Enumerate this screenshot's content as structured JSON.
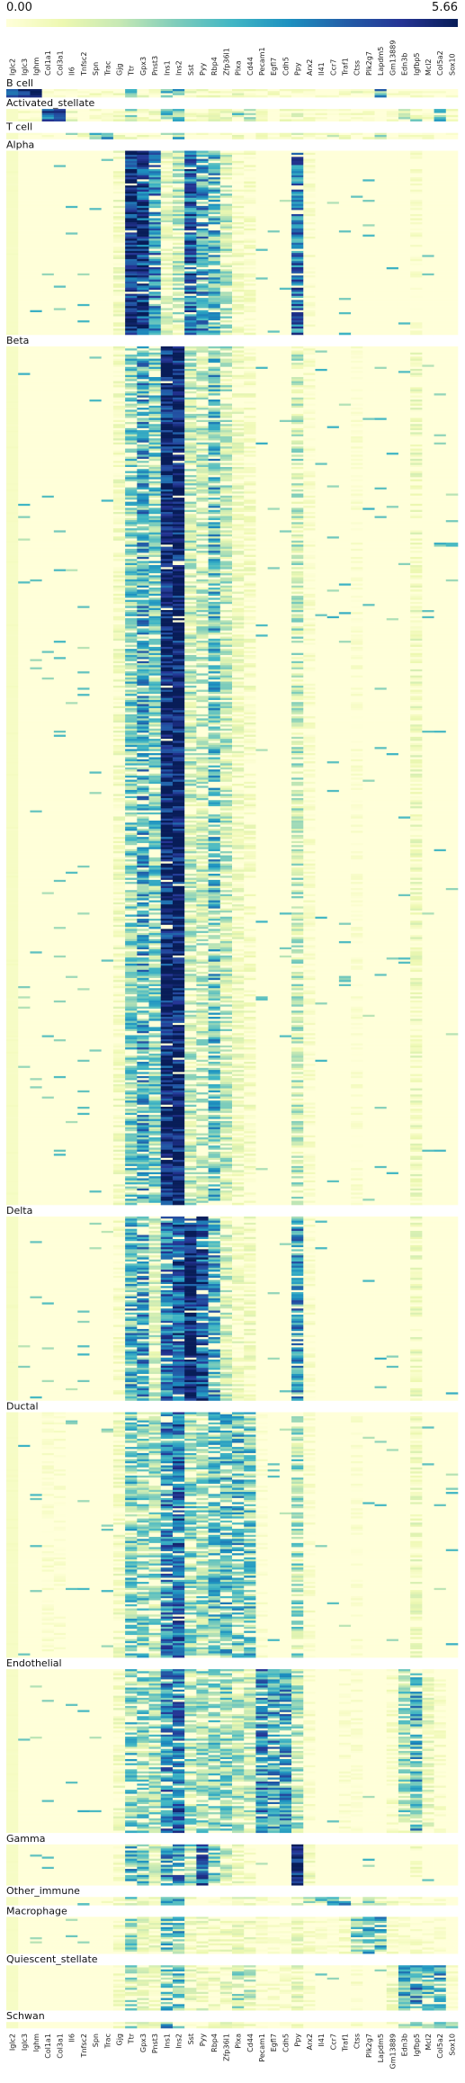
{
  "chart_data": {
    "type": "heatmap",
    "title": "",
    "colorbar": {
      "min": 0.0,
      "max": 5.66,
      "min_label": "0.00",
      "max_label": "5.66",
      "colormap": "YlGnBu",
      "location": "top"
    },
    "genes": [
      "Iglc2",
      "Iglc3",
      "Ighm",
      "Col1a1",
      "Col3a1",
      "Il6",
      "Tnfsc2",
      "Spn",
      "Trac",
      "Gjg",
      "Ttr",
      "Gpx3",
      "Pnst3",
      "Ins1",
      "Ins2",
      "Sst",
      "Pyy",
      "Rbp4",
      "Zfp36l1",
      "Plxa",
      "Cd44",
      "Pecam1",
      "Egfl7",
      "Cdh5",
      "Ppy",
      "Arx2",
      "Il41",
      "Ccr7",
      "Traf1",
      "Ctss",
      "Plk2g7",
      "Lapdm5",
      "Gm13889",
      "Edn3b",
      "Igfbp5",
      "Mcl2",
      "Col5a2",
      "Sox10"
    ],
    "groups": [
      {
        "name": "B cell",
        "rows": 4
      },
      {
        "name": "Activated_stellate",
        "rows": 6
      },
      {
        "name": "T cell",
        "rows": 3
      },
      {
        "name": "Alpha",
        "rows": 90
      },
      {
        "name": "Beta",
        "rows": 420
      },
      {
        "name": "Delta",
        "rows": 90
      },
      {
        "name": "Ductal",
        "rows": 120
      },
      {
        "name": "Endothelial",
        "rows": 80
      },
      {
        "name": "Gamma",
        "rows": 20
      },
      {
        "name": "Other_immune",
        "rows": 4
      },
      {
        "name": "Macrophage",
        "rows": 18
      },
      {
        "name": "Quiescent_stellate",
        "rows": 22
      },
      {
        "name": "Schwan",
        "rows": 3
      }
    ],
    "group_means": {
      "B cell": [
        4.8,
        4.5,
        5.0,
        0.2,
        0.2,
        0.1,
        0.1,
        0.3,
        0.2,
        0.5,
        2.0,
        0.5,
        0.3,
        2.5,
        2.5,
        0.5,
        0.5,
        0.5,
        0.3,
        0.8,
        0.3,
        0.3,
        0.3,
        0.2,
        0.8,
        0.2,
        0.2,
        0.3,
        0.2,
        0.5,
        0.3,
        3.0,
        0.3,
        0.3,
        0.3,
        0.2,
        0.2,
        0.1
      ],
      "Activated_stellate": [
        0.2,
        0.2,
        0.2,
        4.5,
        4.8,
        0.6,
        0.2,
        0.2,
        0.1,
        0.6,
        1.8,
        0.4,
        0.5,
        2.2,
        2.6,
        0.5,
        0.5,
        0.6,
        0.8,
        2.0,
        1.2,
        0.6,
        0.4,
        0.4,
        0.8,
        0.3,
        0.2,
        0.2,
        0.2,
        0.3,
        0.2,
        0.2,
        0.2,
        1.5,
        1.6,
        0.4,
        2.2,
        0.3
      ],
      "T cell": [
        0.3,
        0.2,
        0.2,
        0.2,
        0.2,
        1.5,
        0.6,
        2.0,
        2.8,
        0.5,
        1.8,
        0.4,
        0.3,
        2.3,
        2.4,
        0.4,
        0.4,
        0.4,
        0.5,
        0.7,
        2.5,
        0.4,
        0.3,
        0.3,
        1.0,
        0.3,
        0.3,
        1.5,
        0.4,
        0.4,
        0.3,
        1.5,
        0.4,
        0.3,
        0.4,
        0.2,
        0.2,
        0.1
      ],
      "Alpha": [
        0.1,
        0.0,
        0.0,
        0.0,
        0.0,
        0.0,
        0.0,
        0.0,
        0.0,
        0.5,
        5.2,
        4.8,
        3.4,
        1.0,
        1.4,
        4.0,
        3.2,
        2.8,
        1.5,
        0.4,
        0.3,
        0.0,
        0.0,
        0.0,
        3.8,
        0.2,
        0.0,
        0.0,
        0.0,
        0.0,
        0.0,
        0.0,
        0.0,
        0.0,
        0.2,
        0.0,
        0.0,
        0.0
      ],
      "Beta": [
        0.1,
        0.0,
        0.0,
        0.0,
        0.0,
        0.0,
        0.0,
        0.0,
        0.0,
        0.5,
        2.2,
        3.0,
        2.2,
        5.4,
        5.6,
        1.4,
        1.4,
        2.6,
        1.4,
        0.6,
        0.4,
        0.0,
        0.0,
        0.0,
        1.4,
        0.2,
        0.0,
        0.0,
        0.0,
        0.1,
        0.0,
        0.0,
        0.0,
        0.0,
        0.6,
        0.0,
        0.0,
        0.0
      ],
      "Delta": [
        0.1,
        0.0,
        0.0,
        0.0,
        0.0,
        0.0,
        0.0,
        0.0,
        0.0,
        0.3,
        2.8,
        3.2,
        1.2,
        3.8,
        4.2,
        5.4,
        4.4,
        3.0,
        1.2,
        0.6,
        0.5,
        0.0,
        0.0,
        0.0,
        3.2,
        0.2,
        0.0,
        0.0,
        0.0,
        0.0,
        0.0,
        0.0,
        0.0,
        0.0,
        0.6,
        0.0,
        0.0,
        0.0
      ],
      "Ductal": [
        0.1,
        0.0,
        0.0,
        0.1,
        0.1,
        0.0,
        0.0,
        0.0,
        0.0,
        0.5,
        2.2,
        2.2,
        1.8,
        3.6,
        4.0,
        2.0,
        1.8,
        2.4,
        2.6,
        2.6,
        2.4,
        0.1,
        0.0,
        0.0,
        1.8,
        0.2,
        0.0,
        0.0,
        0.0,
        0.1,
        0.0,
        0.0,
        0.0,
        0.0,
        0.6,
        0.0,
        0.0,
        0.0
      ],
      "Endothelial": [
        0.1,
        0.0,
        0.0,
        0.0,
        0.0,
        0.0,
        0.0,
        0.0,
        0.0,
        0.5,
        2.2,
        2.0,
        1.8,
        3.6,
        4.0,
        1.8,
        1.8,
        2.2,
        2.0,
        1.6,
        1.4,
        3.4,
        3.0,
        3.2,
        1.6,
        0.2,
        0.0,
        0.0,
        0.1,
        0.1,
        0.0,
        0.0,
        0.3,
        1.8,
        2.8,
        0.8,
        0.2,
        0.0
      ],
      "Gamma": [
        0.1,
        0.0,
        0.0,
        0.0,
        0.0,
        0.0,
        0.0,
        0.0,
        0.0,
        0.4,
        2.6,
        2.4,
        1.2,
        3.2,
        3.4,
        1.8,
        4.0,
        2.6,
        1.2,
        0.6,
        0.4,
        0.0,
        0.0,
        0.0,
        5.4,
        0.6,
        0.0,
        0.0,
        0.0,
        0.0,
        0.0,
        0.0,
        0.0,
        0.0,
        0.4,
        0.0,
        0.0,
        0.0
      ],
      "Other_immune": [
        0.1,
        0.0,
        0.0,
        0.0,
        0.0,
        0.0,
        0.0,
        0.0,
        0.2,
        0.4,
        1.8,
        0.6,
        0.4,
        2.4,
        2.6,
        0.4,
        0.4,
        0.4,
        0.4,
        0.8,
        1.6,
        0.2,
        0.2,
        0.1,
        0.8,
        1.8,
        2.2,
        2.8,
        2.6,
        1.8,
        1.6,
        1.4,
        0.4,
        0.2,
        0.2,
        0.2,
        0.2,
        0.0
      ],
      "Macrophage": [
        0.1,
        0.0,
        0.0,
        0.0,
        0.0,
        0.0,
        0.0,
        0.0,
        0.0,
        0.4,
        1.8,
        0.8,
        0.6,
        2.4,
        2.6,
        0.6,
        0.6,
        0.6,
        0.6,
        0.8,
        0.8,
        0.2,
        0.1,
        0.1,
        0.8,
        0.4,
        0.1,
        0.2,
        0.4,
        2.4,
        2.8,
        2.6,
        0.3,
        0.2,
        0.2,
        0.2,
        0.1,
        0.0
      ],
      "Quiescent_stellate": [
        0.1,
        0.0,
        0.0,
        0.0,
        0.0,
        0.0,
        0.0,
        0.0,
        0.0,
        0.4,
        1.8,
        0.8,
        0.6,
        2.4,
        2.6,
        0.8,
        0.8,
        0.6,
        0.8,
        1.6,
        1.2,
        0.2,
        0.2,
        0.2,
        0.8,
        0.2,
        0.0,
        0.0,
        0.0,
        0.2,
        0.0,
        0.0,
        0.6,
        3.0,
        3.2,
        2.4,
        2.8,
        0.2
      ],
      "Schwan": [
        0.1,
        0.0,
        0.0,
        0.0,
        0.0,
        0.0,
        0.0,
        0.0,
        0.0,
        0.4,
        2.0,
        1.0,
        0.6,
        2.8,
        3.0,
        0.6,
        0.6,
        0.6,
        0.6,
        0.8,
        0.8,
        0.2,
        0.2,
        0.2,
        0.8,
        0.2,
        0.0,
        0.0,
        0.0,
        0.2,
        0.0,
        0.0,
        0.4,
        1.8,
        1.8,
        1.8,
        2.2,
        2.2
      ]
    }
  }
}
